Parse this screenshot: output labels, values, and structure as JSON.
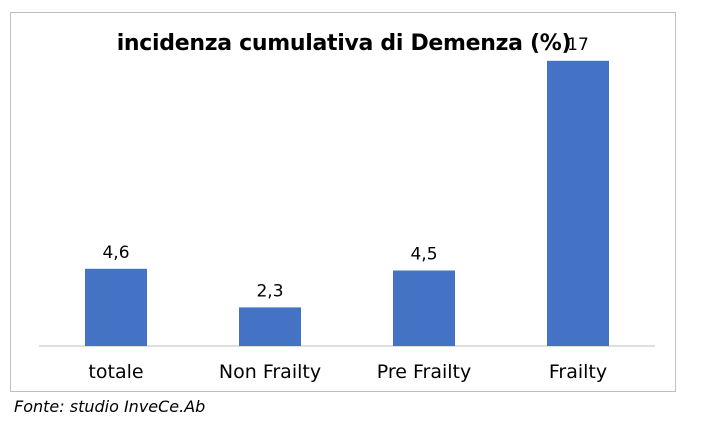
{
  "chart_data": {
    "type": "bar",
    "title": "incidenza cumulativa di Demenza (%)",
    "categories": [
      "totale",
      "Non Frailty",
      "Pre Frailty",
      "Frailty"
    ],
    "values": [
      4.6,
      2.3,
      4.5,
      17
    ],
    "value_labels": [
      "4,6",
      "2,3",
      "4,5",
      "17"
    ],
    "xlabel": "",
    "ylabel": "",
    "ylim": [
      0,
      18
    ],
    "grid": false,
    "legend": "none",
    "bar_color": "#4472c4",
    "axis_color": "#bfbfbf"
  },
  "source": "Fonte: studio InveCe.Ab"
}
